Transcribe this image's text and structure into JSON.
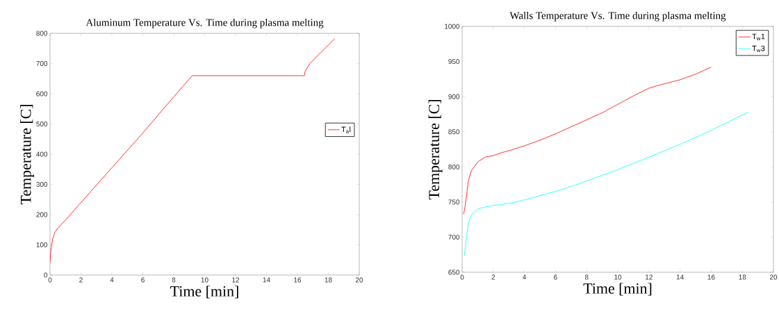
{
  "chart_data": [
    {
      "type": "line",
      "title": "Aluminum Temperature Vs. Time during plasma melting",
      "xlabel": "Time [min]",
      "ylabel": "Temperature [C]",
      "xlim": [
        0,
        20
      ],
      "ylim": [
        0,
        800
      ],
      "xticks": [
        0,
        2,
        4,
        6,
        8,
        10,
        12,
        14,
        16,
        18,
        20
      ],
      "yticks": [
        0,
        100,
        200,
        300,
        400,
        500,
        600,
        700,
        800
      ],
      "legend": "right",
      "series": [
        {
          "name": "T$_{a}$l",
          "color": "#ff0000",
          "x": [
            0,
            0.05,
            0.15,
            0.3,
            0.5,
            1,
            2,
            4,
            6,
            8,
            9.2,
            16.45,
            16.5,
            16.8,
            18.4
          ],
          "values": [
            40,
            80,
            115,
            140,
            155,
            182,
            240,
            355,
            470,
            590,
            660,
            660,
            675,
            700,
            782
          ]
        }
      ]
    },
    {
      "type": "line",
      "title": "Walls Temperature Vs. Time during plasma melting",
      "xlabel": "Time [min]",
      "ylabel": "Temperature [C]",
      "xlim": [
        0,
        20
      ],
      "ylim": [
        650,
        1000
      ],
      "xticks": [
        0,
        2,
        4,
        6,
        8,
        10,
        12,
        14,
        16,
        18,
        20
      ],
      "yticks": [
        650,
        700,
        750,
        800,
        850,
        900,
        950,
        1000
      ],
      "legend": "top right",
      "series": [
        {
          "name": "T$_{w}$1",
          "color": "#ff0000",
          "x": [
            0.1,
            0.2,
            0.4,
            0.6,
            1,
            1.5,
            2,
            2.5,
            3,
            4,
            5,
            6,
            7,
            8,
            9,
            10,
            11,
            12,
            12.6,
            14,
            15,
            16
          ],
          "values": [
            733,
            745,
            780,
            795,
            807,
            814,
            816,
            820,
            823,
            830,
            838,
            847,
            857,
            867,
            877,
            889,
            901,
            912,
            916,
            924,
            932,
            942
          ]
        },
        {
          "name": "T$_{w}$3",
          "color": "#00ffff",
          "x": [
            0.15,
            0.25,
            0.4,
            0.6,
            1,
            1.5,
            2,
            3,
            4,
            5,
            6,
            7,
            8,
            9,
            10,
            11,
            12,
            13,
            14,
            15,
            16,
            17,
            18.4
          ],
          "values": [
            674,
            695,
            720,
            732,
            740,
            743,
            745,
            748,
            753,
            759,
            765,
            772,
            780,
            788,
            796,
            805,
            814,
            823,
            832,
            842,
            852,
            863,
            878
          ]
        }
      ]
    }
  ]
}
